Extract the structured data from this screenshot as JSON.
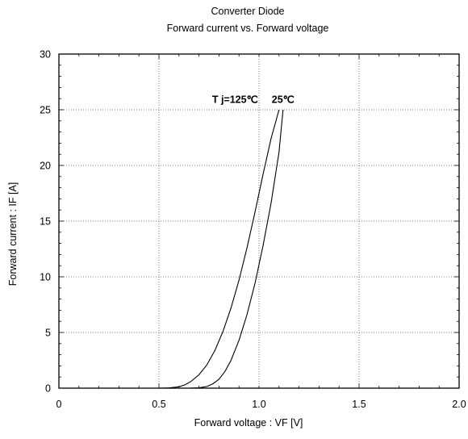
{
  "chart_data": {
    "type": "line",
    "title": "Converter Diode",
    "subtitle": "Forward  current  vs.  Forward  voltage",
    "xlabel": "Forward  voltage  :  VF [V]",
    "ylabel": "Forward  current  :  IF  [A]",
    "xlim": [
      0,
      2.0
    ],
    "ylim": [
      0,
      30
    ],
    "x_ticks": [
      0,
      0.5,
      1.0,
      1.5,
      2.0
    ],
    "x_tick_labels": [
      "0",
      "0.5",
      "1.0",
      "1.5",
      "2.0"
    ],
    "y_ticks": [
      0,
      5,
      10,
      15,
      20,
      25,
      30
    ],
    "y_tick_labels": [
      "0",
      "5",
      "10",
      "15",
      "20",
      "25",
      "30"
    ],
    "grid": true,
    "annotations": [
      {
        "text": "T j=125℃",
        "x": 0.88,
        "y": 25.6
      },
      {
        "text": "25℃",
        "x": 1.12,
        "y": 25.6
      }
    ],
    "series": [
      {
        "x": [
          0.5,
          0.55,
          0.6,
          0.63,
          0.66,
          0.7,
          0.74,
          0.78,
          0.82,
          0.86,
          0.9,
          0.94,
          0.98,
          1.02,
          1.06,
          1.1
        ],
        "y": [
          0,
          0.02,
          0.12,
          0.3,
          0.6,
          1.2,
          2.1,
          3.4,
          5.1,
          7.2,
          9.7,
          12.6,
          15.8,
          19.2,
          22.4,
          25
        ]
      },
      {
        "x": [
          0.65,
          0.7,
          0.74,
          0.77,
          0.8,
          0.83,
          0.86,
          0.9,
          0.94,
          0.98,
          1.02,
          1.06,
          1.1,
          1.12
        ],
        "y": [
          0,
          0.03,
          0.15,
          0.4,
          0.8,
          1.5,
          2.5,
          4.3,
          6.6,
          9.4,
          12.8,
          16.6,
          21.2,
          25
        ]
      }
    ]
  }
}
